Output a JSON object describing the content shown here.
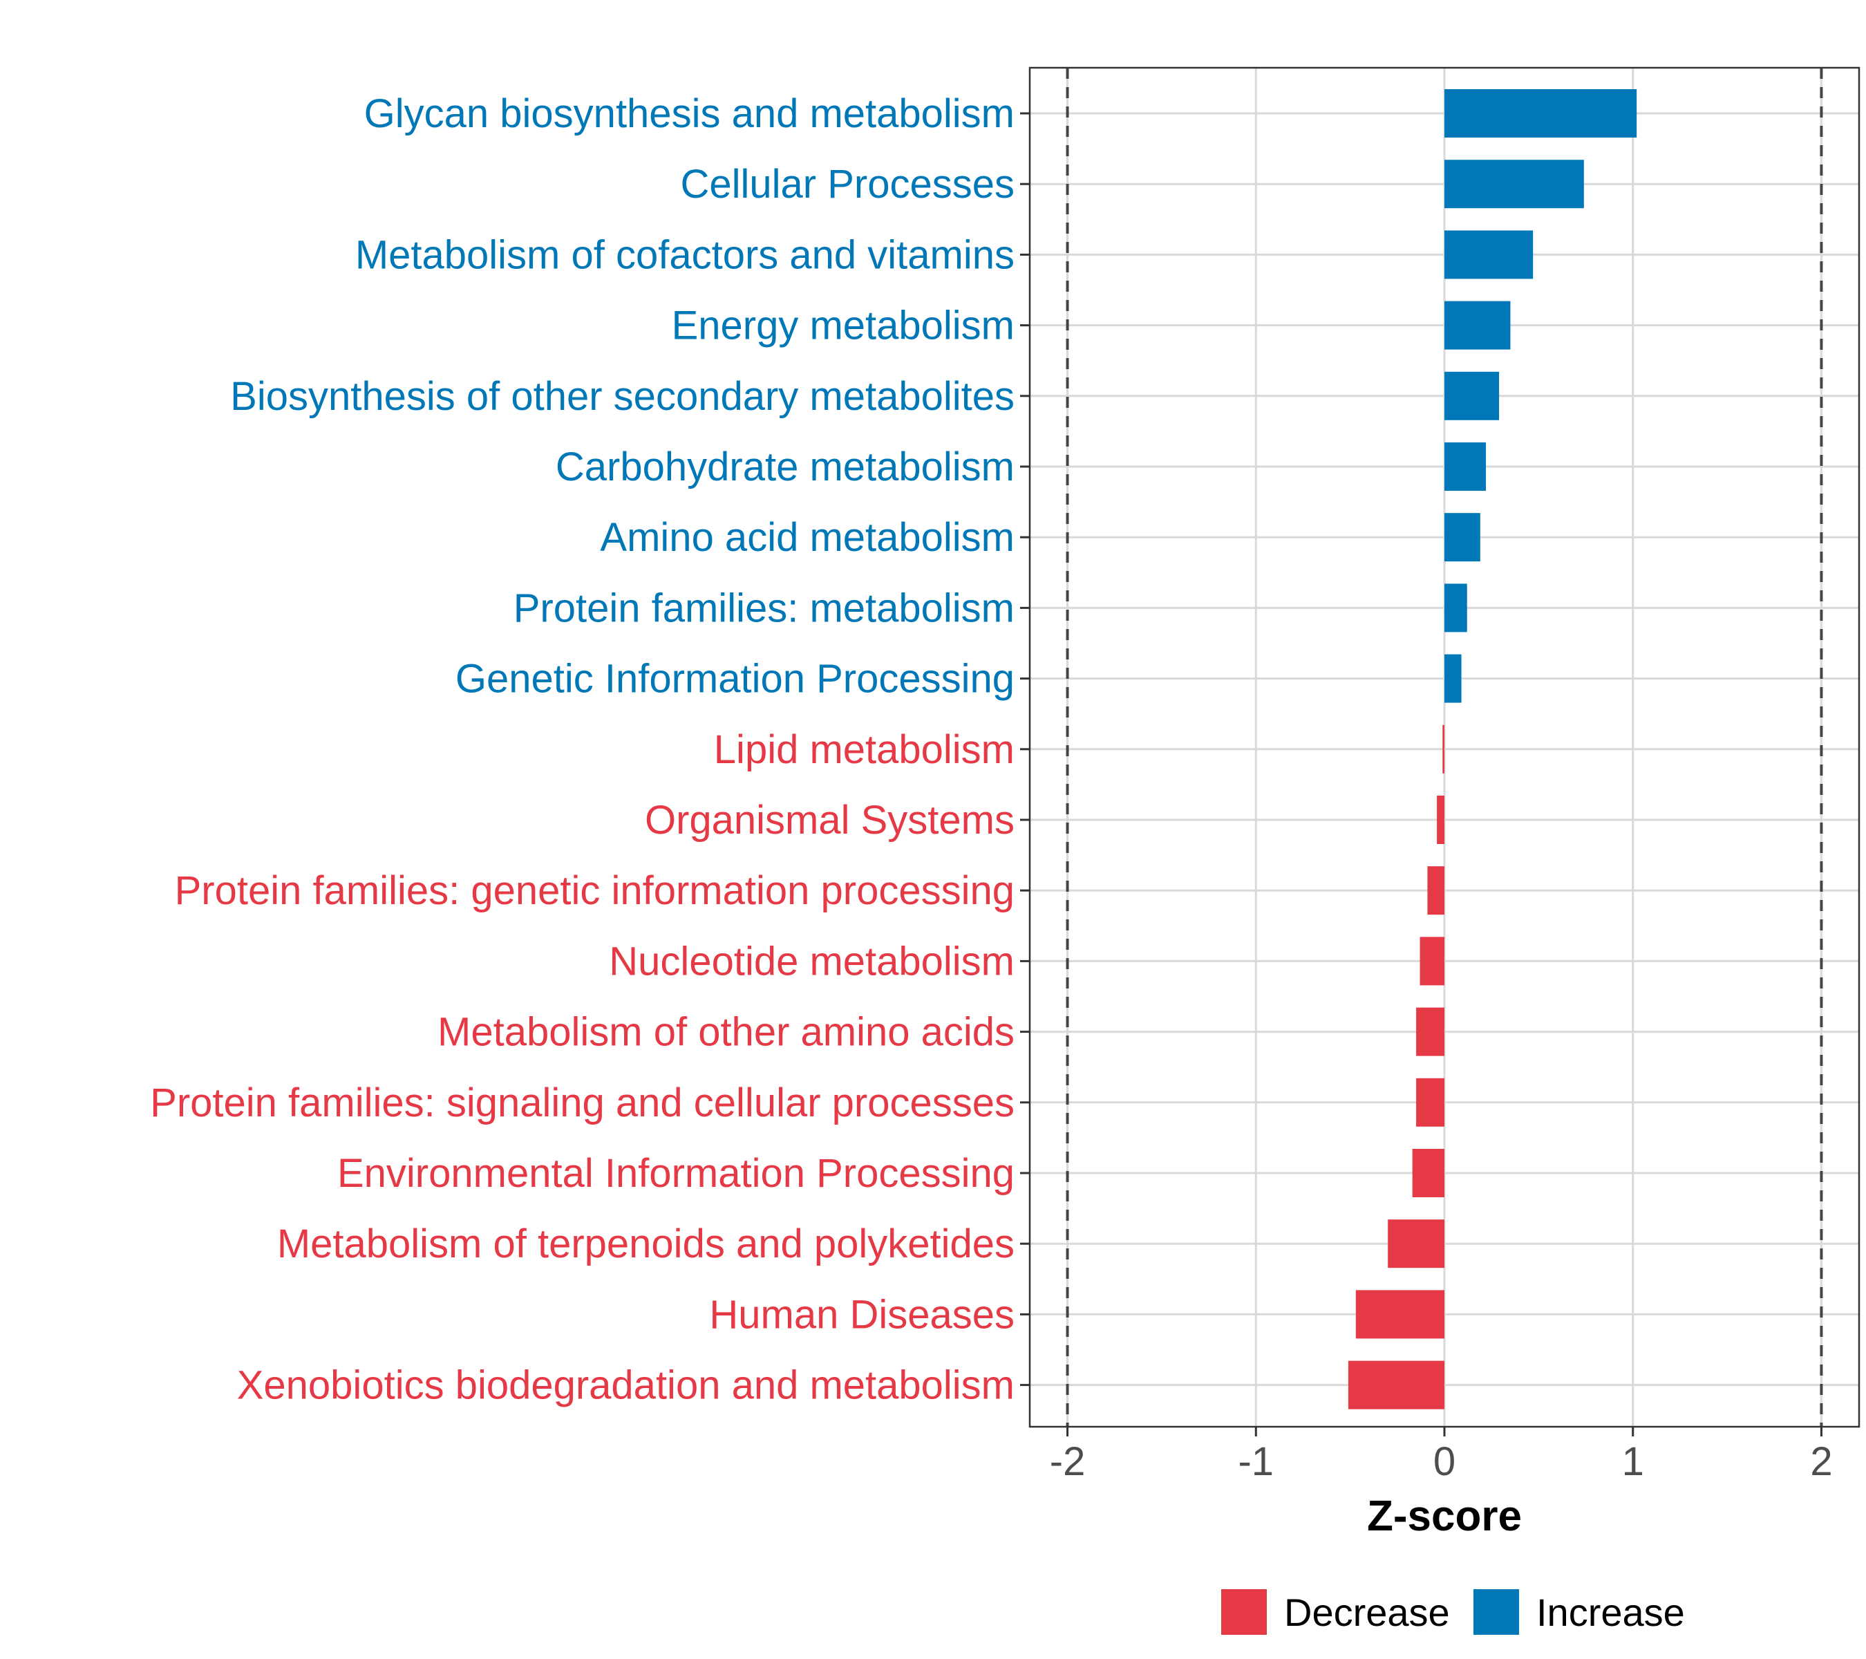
{
  "chart_data": {
    "type": "bar",
    "orientation": "horizontal",
    "xlabel": "Z-score",
    "xlim": [
      -2.2,
      2.2
    ],
    "xticks": [
      -2,
      -1,
      0,
      1,
      2
    ],
    "xtick_labels": [
      "-2",
      "-1",
      "0",
      "1",
      "2"
    ],
    "reference_lines": [
      -2,
      2
    ],
    "grid": true,
    "legend_position": "bottom",
    "legend": [
      {
        "name": "Decrease",
        "color": "#e63946"
      },
      {
        "name": "Increase",
        "color": "#0077b6"
      }
    ],
    "categories": [
      "Glycan biosynthesis and metabolism",
      "Cellular Processes",
      "Metabolism of cofactors and vitamins",
      "Energy metabolism",
      "Biosynthesis of other secondary metabolites",
      "Carbohydrate metabolism",
      "Amino acid metabolism",
      "Protein families: metabolism",
      "Genetic Information Processing",
      "Lipid metabolism",
      "Organismal Systems",
      "Protein families: genetic information processing",
      "Nucleotide metabolism",
      "Metabolism of other amino acids",
      "Protein families: signaling and cellular processes",
      "Environmental Information Processing",
      "Metabolism of terpenoids and polyketides",
      "Human Diseases",
      "Xenobiotics biodegradation and metabolism"
    ],
    "values": [
      1.02,
      0.74,
      0.47,
      0.35,
      0.29,
      0.22,
      0.19,
      0.12,
      0.09,
      -0.01,
      -0.04,
      -0.09,
      -0.13,
      -0.15,
      -0.15,
      -0.17,
      -0.3,
      -0.47,
      -0.51
    ],
    "groups": [
      "Increase",
      "Increase",
      "Increase",
      "Increase",
      "Increase",
      "Increase",
      "Increase",
      "Increase",
      "Increase",
      "Decrease",
      "Decrease",
      "Decrease",
      "Decrease",
      "Decrease",
      "Decrease",
      "Decrease",
      "Decrease",
      "Decrease",
      "Decrease"
    ]
  }
}
